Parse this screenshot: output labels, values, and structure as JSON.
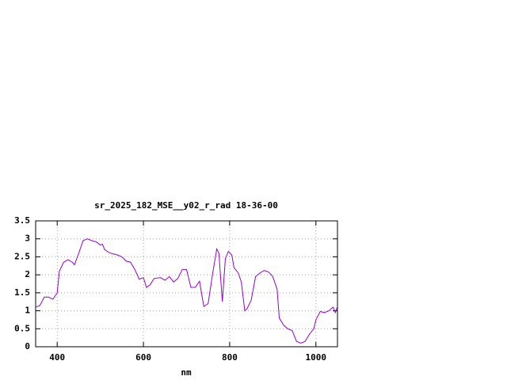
{
  "chart_data": {
    "type": "line",
    "title": "sr_2025_182_MSE__y02_r_rad 18-36-00",
    "xlabel": "nm",
    "x": [
      350,
      360,
      370,
      380,
      390,
      400,
      405,
      415,
      425,
      435,
      440,
      450,
      460,
      470,
      480,
      490,
      500,
      505,
      510,
      520,
      530,
      540,
      550,
      560,
      570,
      580,
      590,
      600,
      607,
      615,
      625,
      640,
      650,
      660,
      670,
      680,
      690,
      700,
      710,
      720,
      730,
      740,
      750,
      760,
      770,
      775,
      783,
      790,
      797,
      805,
      810,
      820,
      827,
      835,
      840,
      850,
      860,
      870,
      880,
      890,
      900,
      910,
      915,
      925,
      935,
      945,
      955,
      965,
      975,
      985,
      995,
      1000,
      1010,
      1020,
      1030,
      1035,
      1040,
      1045,
      1050
    ],
    "series": [
      {
        "color": "#9400d3",
        "values": [
          1.1,
          1.15,
          1.38,
          1.38,
          1.32,
          1.5,
          2.1,
          2.35,
          2.42,
          2.35,
          2.28,
          2.6,
          2.95,
          3.0,
          2.95,
          2.92,
          2.83,
          2.85,
          2.7,
          2.62,
          2.58,
          2.55,
          2.5,
          2.38,
          2.35,
          2.15,
          1.88,
          1.92,
          1.65,
          1.72,
          1.9,
          1.92,
          1.85,
          1.95,
          1.8,
          1.9,
          2.15,
          2.15,
          1.65,
          1.65,
          1.82,
          1.12,
          1.2,
          2.0,
          2.72,
          2.6,
          1.25,
          2.45,
          2.65,
          2.55,
          2.2,
          2.05,
          1.8,
          1.0,
          1.05,
          1.3,
          1.95,
          2.05,
          2.12,
          2.08,
          1.95,
          1.6,
          0.8,
          0.6,
          0.5,
          0.45,
          0.15,
          0.1,
          0.15,
          0.35,
          0.5,
          0.75,
          0.98,
          0.95,
          1.0,
          1.05,
          1.1,
          0.95,
          1.12
        ]
      }
    ],
    "xlim": [
      350,
      1050
    ],
    "ylim": [
      0,
      3.5
    ],
    "xticks": [
      400,
      600,
      800,
      1000
    ],
    "yticks": [
      0,
      0.5,
      1,
      1.5,
      2,
      2.5,
      3,
      3.5
    ],
    "grid": true
  }
}
